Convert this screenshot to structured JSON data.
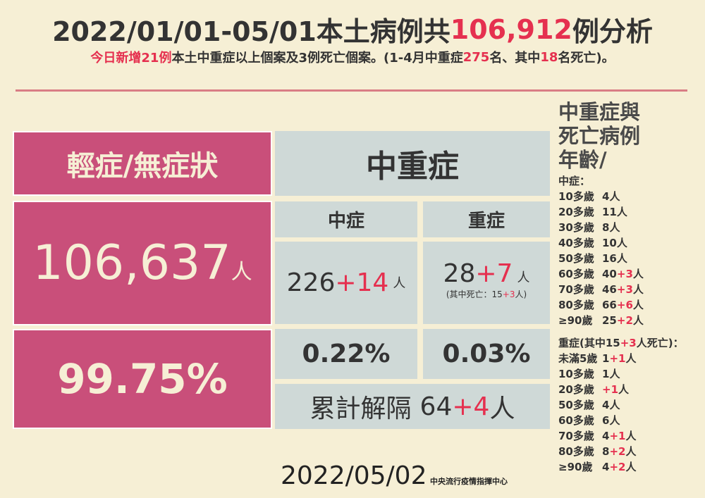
{
  "header": {
    "title": [
      {
        "text": "2022/01/01-05/01本土病例共"
      },
      {
        "text": "106,912",
        "red": true
      },
      {
        "text": "例分析"
      }
    ],
    "subtitle": [
      {
        "text": "今日新增21例",
        "red": true
      },
      {
        "text": "本土中重症以上個案及3例死亡個案。(1-4月中重症"
      },
      {
        "text": "275",
        "red": true
      },
      {
        "text": "名、其中"
      },
      {
        "text": "18",
        "red": true
      },
      {
        "text": "名死亡)。"
      }
    ]
  },
  "mild": {
    "heading": "輕症/無症狀",
    "count": "106,637",
    "unit": "人",
    "percent": "99.75%"
  },
  "serious": {
    "heading": "中重症",
    "moderate": {
      "label": "中症",
      "count": "226",
      "add": "+14",
      "unit": "人",
      "percent": "0.22%"
    },
    "severe": {
      "label": "重症",
      "count": "28",
      "add": "+7",
      "unit": "人",
      "note": [
        {
          "text": "(其中死亡：15"
        },
        {
          "text": "+3",
          "red": true
        },
        {
          "text": "人)"
        }
      ],
      "percent": "0.03%"
    },
    "released": {
      "label": "累計解隔",
      "count": "64",
      "add": "+4",
      "unit": "人"
    }
  },
  "ages": {
    "heading": [
      "中重症與",
      "死亡病例",
      "年齡/"
    ],
    "moderate_title": "中症：",
    "moderate": [
      {
        "age": "10多歲",
        "count": "4",
        "unit": "人"
      },
      {
        "age": "20多歲",
        "count": "11",
        "unit": "人"
      },
      {
        "age": "30多歲",
        "count": "8",
        "unit": "人"
      },
      {
        "age": "40多歲",
        "count": "10",
        "unit": "人"
      },
      {
        "age": "50多歲",
        "count": "16",
        "unit": "人"
      },
      {
        "age": "60多歲",
        "count": "40",
        "add": "+3",
        "unit": "人"
      },
      {
        "age": "70多歲",
        "count": "46",
        "add": "+3",
        "unit": "人"
      },
      {
        "age": "80多歲",
        "count": "66",
        "add": "+6",
        "unit": "人"
      },
      {
        "age": "≥90歲",
        "count": "25",
        "add": "+2",
        "unit": "人"
      }
    ],
    "severe_title": [
      {
        "text": "重症(其中15"
      },
      {
        "text": "+3",
        "red": true
      },
      {
        "text": "人死亡)："
      }
    ],
    "severe": [
      {
        "age": "未滿5歲",
        "count": "1",
        "add": "+1",
        "unit": "人"
      },
      {
        "age": "10多歲",
        "count": "1",
        "unit": "人"
      },
      {
        "age": "20多歲",
        "add": "+1",
        "unit": "人"
      },
      {
        "age": "50多歲",
        "count": "4",
        "unit": "人"
      },
      {
        "age": "60多歲",
        "count": "6",
        "unit": "人"
      },
      {
        "age": "70多歲",
        "count": "4",
        "add": "+1",
        "unit": "人"
      },
      {
        "age": "80多歲",
        "count": "8",
        "add": "+2",
        "unit": "人"
      },
      {
        "age": "≥90歲",
        "count": "4",
        "add": "+2",
        "unit": "人"
      }
    ]
  },
  "footer": {
    "date": "2022/05/02",
    "agency": "中央流行疫情指揮中心"
  }
}
